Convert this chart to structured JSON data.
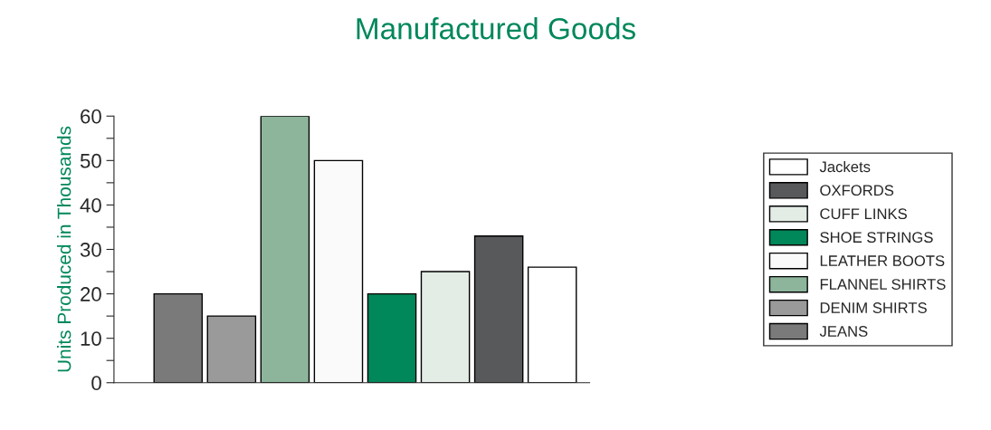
{
  "chart_data": {
    "type": "bar",
    "title": "Manufactured Goods",
    "ylabel": "Units Produced in Thousands",
    "categories": [
      null,
      null,
      null,
      null,
      null,
      null,
      null,
      null
    ],
    "series": [
      {
        "name": "Jackets",
        "color": "#ffffff",
        "values": [
          null,
          null,
          null,
          null,
          null,
          null,
          null,
          26
        ]
      },
      {
        "name": "OXFORDS",
        "color": "#58595b",
        "values": [
          null,
          null,
          null,
          null,
          null,
          null,
          33,
          null
        ]
      },
      {
        "name": "CUFF LINKS",
        "color": "#e3ede6",
        "values": [
          null,
          null,
          null,
          null,
          null,
          25,
          null,
          null
        ]
      },
      {
        "name": "SHOE STRINGS",
        "color": "#00875a",
        "values": [
          null,
          null,
          null,
          null,
          20,
          null,
          null,
          null
        ]
      },
      {
        "name": "LEATHER BOOTS",
        "color": "#fafafa",
        "values": [
          null,
          null,
          null,
          50,
          null,
          null,
          null,
          null
        ]
      },
      {
        "name": "FLANNEL SHIRTS",
        "color": "#8db59c",
        "values": [
          null,
          null,
          60,
          null,
          null,
          null,
          null,
          null
        ]
      },
      {
        "name": "DENIM SHIRTS",
        "color": "#9a9a9a",
        "values": [
          null,
          15,
          null,
          null,
          null,
          null,
          null,
          null
        ]
      },
      {
        "name": "JEANS",
        "color": "#7a7a7a",
        "values": [
          20,
          null,
          null,
          null,
          null,
          null,
          null,
          null
        ]
      }
    ],
    "ylim": [
      0,
      60
    ],
    "yticks": [
      0,
      {
        "value": 5,
        "label": null
      },
      10,
      {
        "value": 15,
        "label": null
      },
      20,
      {
        "value": 25,
        "label": null
      },
      30,
      {
        "value": 35,
        "label": null
      },
      40,
      {
        "value": 45,
        "label": null
      },
      50,
      {
        "value": 55,
        "label": null
      },
      60
    ],
    "stacked": true,
    "grid": false,
    "legend": "right"
  }
}
